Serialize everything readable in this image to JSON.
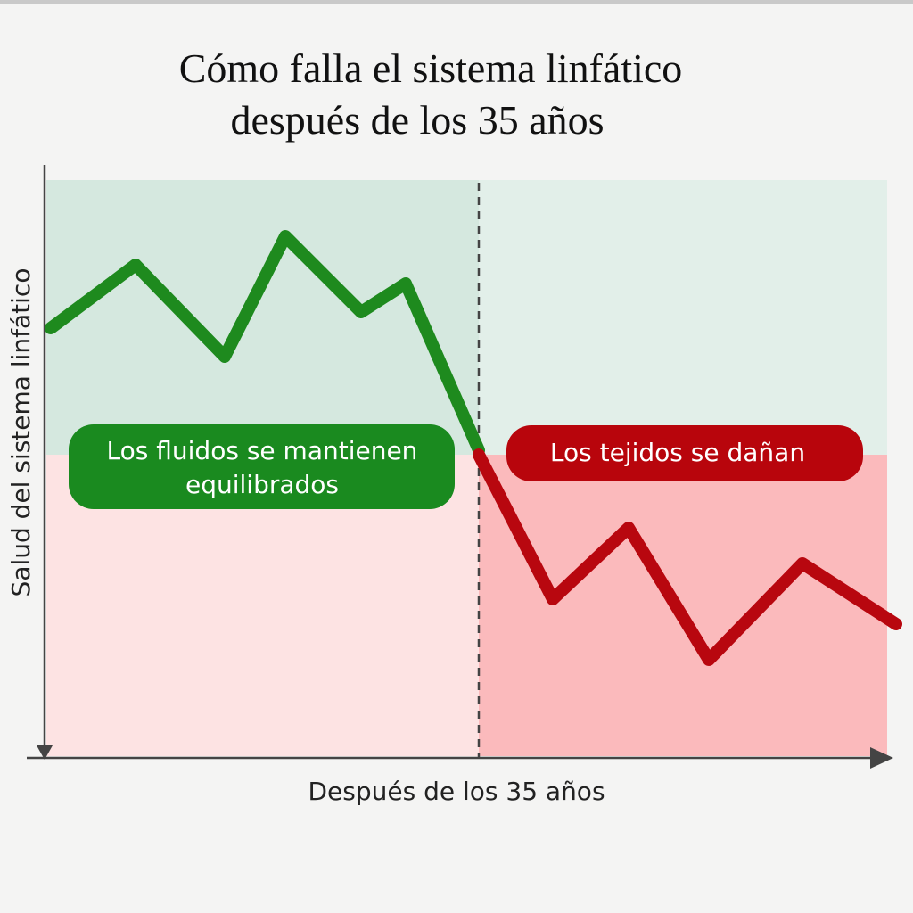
{
  "header": {
    "title_lines": [
      "Cómo falla el sistema linfático",
      "después de los 35 años"
    ]
  },
  "axes": {
    "y_label": "Salud del sistema linfático",
    "x_label": "Después de los 35 años"
  },
  "labels": {
    "left": [
      "Los fluidos se mantienen",
      "equilibrados"
    ],
    "right": "Los tejidos se dañan"
  }
}
